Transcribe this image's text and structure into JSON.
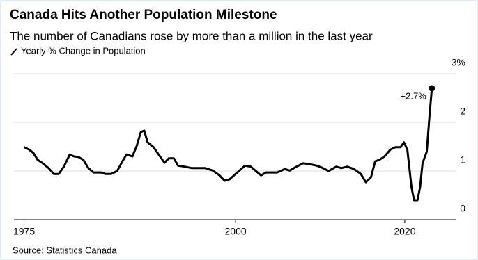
{
  "chart_data": {
    "type": "line",
    "title": "Canada Hits Another Population Milestone",
    "subtitle": "The number of Canadians rose by more than a million in the last year",
    "source": "Source: Statistics Canada",
    "series": [
      {
        "name": "Yearly % Change in Population",
        "color": "#000000",
        "x": [
          1975,
          1975.6,
          1976.1,
          1976.6,
          1977.2,
          1977.9,
          1978.5,
          1979.1,
          1979.7,
          1980.4,
          1980.9,
          1981.4,
          1982,
          1982.6,
          1983.2,
          1984.1,
          1984.6,
          1985.3,
          1986,
          1986.5,
          1987.1,
          1987.8,
          1988.3,
          1988.8,
          1989.2,
          1989.6,
          1990.3,
          1990.9,
          1991.6,
          1992.1,
          1992.7,
          1993.2,
          1994,
          1994.8,
          1995.6,
          1996.4,
          1997.3,
          1998.1,
          1998.7,
          1999.3,
          2000,
          2000.6,
          2001.1,
          2001.8,
          2002.4,
          2003,
          2003.6,
          2004.3,
          2004.9,
          2005.8,
          2006.4,
          2007.2,
          2008,
          2008.8,
          2009.6,
          2010.2,
          2011,
          2011.9,
          2012.5,
          2013.2,
          2014,
          2014.8,
          2015.4,
          2016,
          2016.5,
          2017,
          2017.6,
          2018.3,
          2018.9,
          2019.5,
          2019.9,
          2020.3,
          2020.8,
          2021.1,
          2021.5,
          2021.8,
          2022.1,
          2022.6,
          2022.9,
          2023.2
        ],
        "values": [
          1.49,
          1.44,
          1.37,
          1.23,
          1.16,
          1.06,
          0.94,
          0.94,
          1.09,
          1.34,
          1.3,
          1.29,
          1.23,
          1.06,
          0.97,
          0.97,
          0.94,
          0.94,
          1.0,
          1.16,
          1.34,
          1.3,
          1.51,
          1.8,
          1.83,
          1.59,
          1.49,
          1.34,
          1.17,
          1.26,
          1.26,
          1.11,
          1.09,
          1.06,
          1.06,
          1.06,
          1.01,
          0.91,
          0.8,
          0.83,
          0.94,
          1.03,
          1.11,
          1.09,
          1.0,
          0.91,
          0.97,
          0.97,
          0.97,
          1.04,
          1.01,
          1.09,
          1.16,
          1.14,
          1.11,
          1.07,
          1.0,
          1.09,
          1.06,
          1.09,
          1.04,
          0.94,
          0.77,
          0.87,
          1.2,
          1.23,
          1.3,
          1.44,
          1.49,
          1.49,
          1.59,
          1.44,
          0.66,
          0.4,
          0.4,
          0.66,
          1.16,
          1.4,
          2.09,
          2.7
        ],
        "value_labels": {
          "79": "+2.7%"
        }
      }
    ],
    "xlim": [
      1973.8,
      2026.1
    ],
    "xticks": [
      1975,
      2000,
      2020
    ],
    "ylim": [
      0,
      3.3
    ],
    "yticks": [
      0,
      1,
      2,
      {
        "value": 3,
        "label": "3%"
      }
    ],
    "grid": true
  }
}
